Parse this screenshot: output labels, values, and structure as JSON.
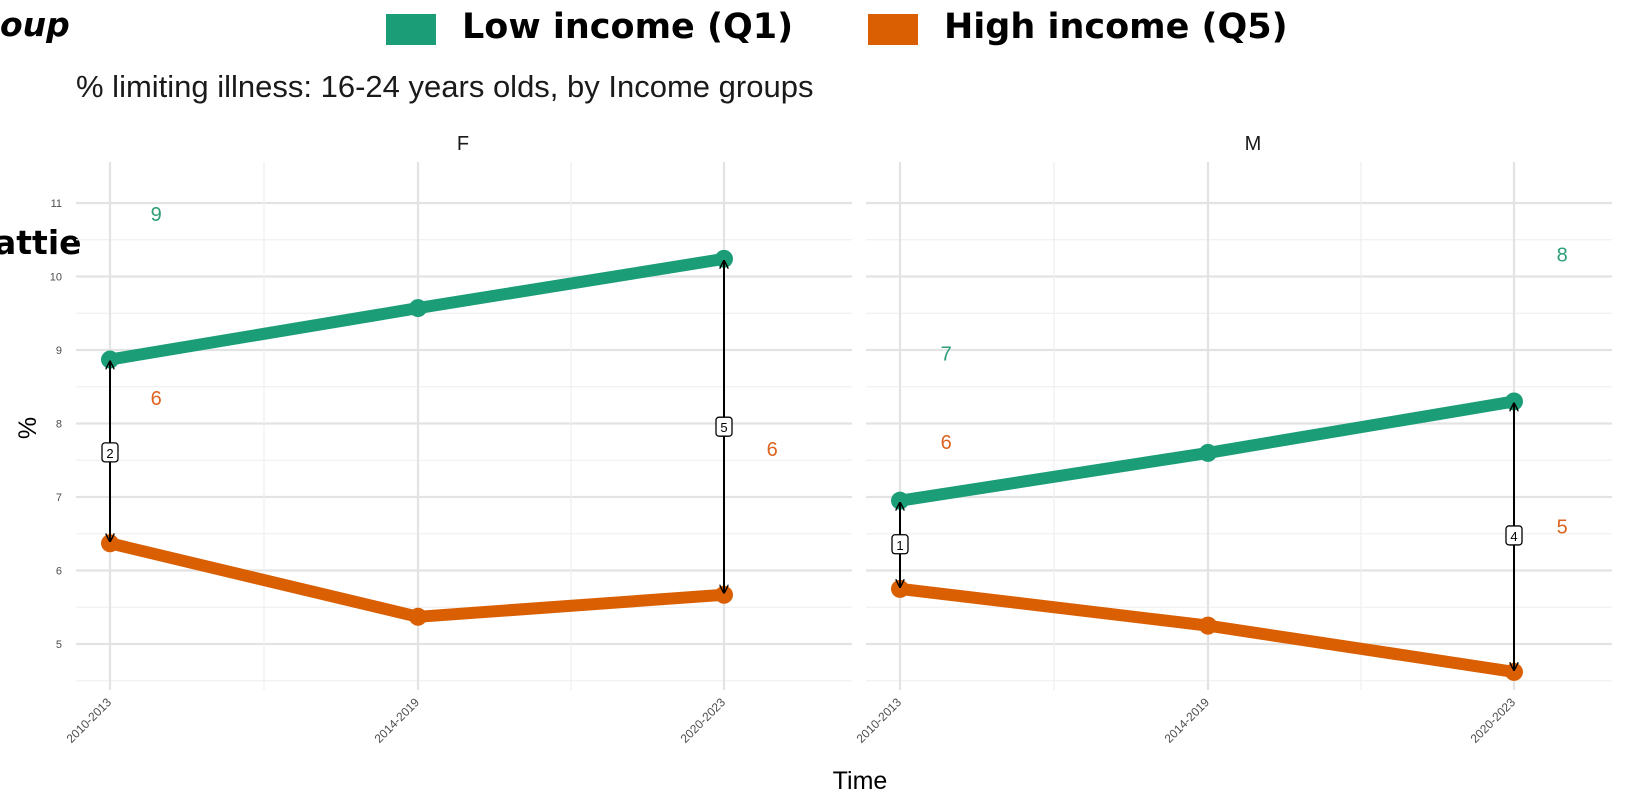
{
  "legend": {
    "title_fragment": "oup",
    "side_fragment": "attie",
    "items": [
      {
        "label": "Low income (Q1)",
        "color": "#1b9e77"
      },
      {
        "label": "High income (Q5)",
        "color": "#d95f02"
      }
    ]
  },
  "chart_data": {
    "type": "line",
    "title": "% limiting illness: 16-24 years olds, by Income groups",
    "xlabel": "Time",
    "ylabel": "%",
    "categories": [
      "2010-2013",
      "2014-2019",
      "2020-2023"
    ],
    "y_ticks": [
      5,
      6,
      7,
      8,
      9,
      10,
      11
    ],
    "ylim": [
      4.5,
      11.2
    ],
    "grid": true,
    "colors": {
      "low": "#1b9e77",
      "high": "#d95f02",
      "low_text": "#2d9e76",
      "high_text": "#dc6420"
    },
    "panels": [
      {
        "strip": "F",
        "series": [
          {
            "name": "Low income (Q1)",
            "key": "low",
            "values": [
              8.87,
              9.57,
              10.24
            ]
          },
          {
            "name": "High income (Q5)",
            "key": "high",
            "values": [
              6.37,
              5.37,
              5.67
            ]
          }
        ],
        "gaps": [
          {
            "category": "2010-2013",
            "label": "2",
            "label_y": 7.6
          },
          {
            "category": "2020-2023",
            "label": "5",
            "label_y": 7.95
          }
        ],
        "side_labels": [
          {
            "text": "9",
            "series": "low",
            "x": 0.15,
            "y": 10.85
          },
          {
            "text": "6",
            "series": "high",
            "x": 0.15,
            "y": 8.35
          },
          {
            "text": "6",
            "series": "high",
            "x": 2.15,
            "y": 7.65
          }
        ]
      },
      {
        "strip": "M",
        "series": [
          {
            "name": "Low income (Q1)",
            "key": "low",
            "values": [
              6.95,
              7.6,
              8.3
            ]
          },
          {
            "name": "High income (Q5)",
            "key": "high",
            "values": [
              5.75,
              5.25,
              4.62
            ]
          }
        ],
        "gaps": [
          {
            "category": "2010-2013",
            "label": "1",
            "label_y": 6.35
          },
          {
            "category": "2020-2023",
            "label": "4",
            "label_y": 6.47
          }
        ],
        "side_labels": [
          {
            "text": "7",
            "series": "low",
            "x": 0.15,
            "y": 8.95
          },
          {
            "text": "6",
            "series": "high",
            "x": 0.15,
            "y": 7.75
          },
          {
            "text": "8",
            "series": "low",
            "x": 2.15,
            "y": 10.3
          },
          {
            "text": "5",
            "series": "high",
            "x": 2.15,
            "y": 6.6
          }
        ]
      }
    ]
  }
}
